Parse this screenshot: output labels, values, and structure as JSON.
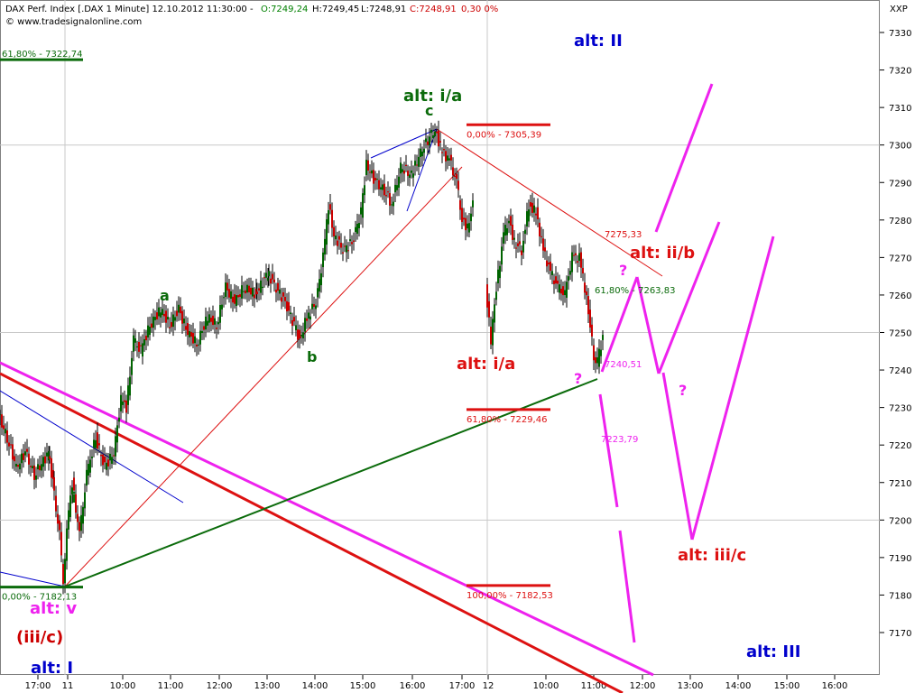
{
  "header": {
    "title": "DAX Perf. Index [.DAX  1 Minute] 12.10.2012 11:30:00 -",
    "open": "O:7249,24",
    "high": "H:7249,45",
    "low": "L:7248,91",
    "close": "C:7248,91",
    "change": "-0,30",
    "change_pct": "0,30 0%",
    "copyright": "© www.tradesignalonline.com",
    "corner_label": "XXP"
  },
  "colors": {
    "up": "#006400",
    "down": "#cc0000",
    "magenta": "#ee22ee",
    "blue": "#0000cc",
    "green": "#0b6b0b",
    "red": "#dd1111"
  },
  "chart_data": {
    "type": "candlestick",
    "instrument": "DAX Perf. Index",
    "timeframe": "1 Minute",
    "ylim": [
      7160,
      7340
    ],
    "y_ticks": [
      7170,
      7180,
      7190,
      7200,
      7210,
      7220,
      7230,
      7240,
      7250,
      7260,
      7270,
      7280,
      7290,
      7300,
      7310,
      7320,
      7330
    ],
    "x_ticks": [
      "17:00",
      "11",
      "10:00",
      "11:00",
      "12:00",
      "13:00",
      "14:00",
      "15:00",
      "16:00",
      "17:00",
      "12",
      "10:00",
      "11:00",
      "12:00",
      "13:00",
      "14:00",
      "15:00",
      "16:00"
    ],
    "price_path": [
      [
        0,
        7228
      ],
      [
        10,
        7222
      ],
      [
        20,
        7214
      ],
      [
        30,
        7218
      ],
      [
        40,
        7212
      ],
      [
        55,
        7218
      ],
      [
        60,
        7210
      ],
      [
        68,
        7196
      ],
      [
        72,
        7183
      ],
      [
        76,
        7198
      ],
      [
        82,
        7210
      ],
      [
        90,
        7196
      ],
      [
        98,
        7212
      ],
      [
        108,
        7222
      ],
      [
        118,
        7214
      ],
      [
        128,
        7218
      ],
      [
        136,
        7232
      ],
      [
        142,
        7230
      ],
      [
        150,
        7248
      ],
      [
        158,
        7245
      ],
      [
        168,
        7252
      ],
      [
        180,
        7256
      ],
      [
        190,
        7252
      ],
      [
        200,
        7256
      ],
      [
        210,
        7250
      ],
      [
        220,
        7247
      ],
      [
        232,
        7254
      ],
      [
        242,
        7252
      ],
      [
        252,
        7262
      ],
      [
        262,
        7258
      ],
      [
        272,
        7262
      ],
      [
        285,
        7260
      ],
      [
        298,
        7266
      ],
      [
        308,
        7262
      ],
      [
        318,
        7258
      ],
      [
        328,
        7252
      ],
      [
        334,
        7248
      ],
      [
        342,
        7254
      ],
      [
        352,
        7258
      ],
      [
        360,
        7270
      ],
      [
        366,
        7284
      ],
      [
        372,
        7276
      ],
      [
        382,
        7272
      ],
      [
        392,
        7274
      ],
      [
        402,
        7282
      ],
      [
        408,
        7295
      ],
      [
        418,
        7290
      ],
      [
        428,
        7288
      ],
      [
        436,
        7284
      ],
      [
        446,
        7294
      ],
      [
        458,
        7292
      ],
      [
        468,
        7298
      ],
      [
        478,
        7302
      ],
      [
        484,
        7304
      ],
      [
        492,
        7298
      ],
      [
        500,
        7296
      ],
      [
        508,
        7290
      ],
      [
        514,
        7280
      ],
      [
        520,
        7278
      ],
      [
        526,
        7284
      ]
    ],
    "price_path_day2": [
      [
        540,
        7262
      ],
      [
        546,
        7248
      ],
      [
        552,
        7262
      ],
      [
        560,
        7276
      ],
      [
        566,
        7280
      ],
      [
        572,
        7274
      ],
      [
        580,
        7272
      ],
      [
        588,
        7284
      ],
      [
        596,
        7282
      ],
      [
        604,
        7272
      ],
      [
        612,
        7266
      ],
      [
        620,
        7262
      ],
      [
        628,
        7260
      ],
      [
        636,
        7270
      ],
      [
        644,
        7270
      ],
      [
        650,
        7262
      ],
      [
        656,
        7252
      ],
      [
        660,
        7244
      ],
      [
        664,
        7242
      ],
      [
        670,
        7249
      ]
    ],
    "fib_levels": [
      {
        "label": "61,80% - 7322,74",
        "value": 7322.74,
        "color": "#0b6b0b"
      },
      {
        "label": "0,00% - 7305,39",
        "value": 7305.39,
        "color": "#dd1111"
      },
      {
        "label": "61,80% - 7229,46",
        "value": 7229.46,
        "color": "#dd1111"
      },
      {
        "label": "100,00% - 7182,53",
        "value": 7182.53,
        "color": "#dd1111"
      },
      {
        "label": "0,00% - 7182,13",
        "value": 7182.13,
        "color": "#0b6b0b"
      }
    ],
    "annotations": [
      "7275,33",
      "61,80% - 7263,83",
      "7240,51",
      "7223,79"
    ]
  },
  "labels": {
    "alt_II": "alt: II",
    "alt_ia_top": "alt: i/a",
    "c": "c",
    "a": "a",
    "b": "b",
    "i": "i",
    "alt_ia_red": "alt: i/a",
    "alt_iib": "alt: ii/b",
    "q1": "?",
    "q2": "?",
    "q3": "?",
    "alt_iiic": "alt: iii/c",
    "alt_v": "alt: v",
    "iiic": "(iii/c)",
    "alt_I": "alt: I",
    "alt_III": "alt: III"
  }
}
